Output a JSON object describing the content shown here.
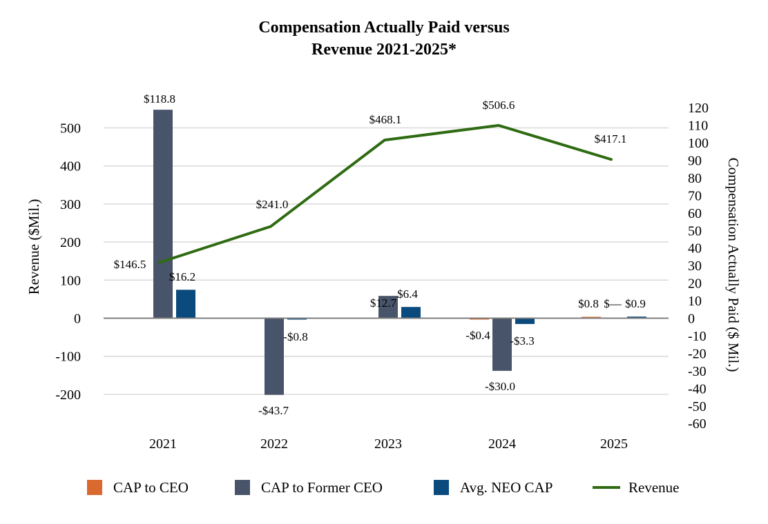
{
  "title_line1": "Compensation Actually Paid versus",
  "title_line2": "Revenue 2021-2025*",
  "chart_data": {
    "type": "bar",
    "title": "Compensation Actually Paid versus Revenue 2021-2025*",
    "categories": [
      "2021",
      "2022",
      "2023",
      "2024",
      "2025"
    ],
    "ylabel": "Revenue ($Mil.)",
    "ylim": [
      -200,
      500
    ],
    "yticks": [
      -200,
      -100,
      0,
      100,
      200,
      300,
      400,
      500
    ],
    "y2label": "Compensation Actually Paid ($ Mil.)",
    "y2lim": [
      -60,
      120
    ],
    "y2ticks": [
      -60,
      -50,
      -40,
      -30,
      -20,
      -10,
      0,
      10,
      20,
      30,
      40,
      50,
      60,
      70,
      80,
      90,
      100,
      110,
      120
    ],
    "grid": true,
    "legend_position": "bottom",
    "series": [
      {
        "name": "CAP to CEO",
        "kind": "bar",
        "axis": "right",
        "color": "#D9692F",
        "values": [
          null,
          null,
          null,
          -0.4,
          0.8
        ],
        "labels": [
          "",
          "",
          "",
          "-$0.4",
          "$0.8"
        ]
      },
      {
        "name": "CAP to Former CEO",
        "kind": "bar",
        "axis": "right",
        "color": "#48546A",
        "values": [
          118.8,
          -43.7,
          12.7,
          -30.0,
          0
        ],
        "labels": [
          "$118.8",
          "-$43.7",
          "$12.7",
          "-$30.0",
          "$—"
        ]
      },
      {
        "name": "Avg. NEO CAP",
        "kind": "bar",
        "axis": "right",
        "color": "#0A4A7C",
        "values": [
          16.2,
          -0.8,
          6.4,
          -3.3,
          0.9
        ],
        "labels": [
          "$16.2",
          "-$0.8",
          "$6.4",
          "-$3.3",
          "$0.9"
        ]
      },
      {
        "name": "Revenue",
        "kind": "line",
        "axis": "left",
        "color": "#2E6B12",
        "values": [
          146.5,
          241.0,
          468.1,
          506.6,
          417.1
        ],
        "labels": [
          "$146.5",
          "$241.0",
          "$468.1",
          "$506.6",
          "$417.1"
        ]
      }
    ]
  }
}
